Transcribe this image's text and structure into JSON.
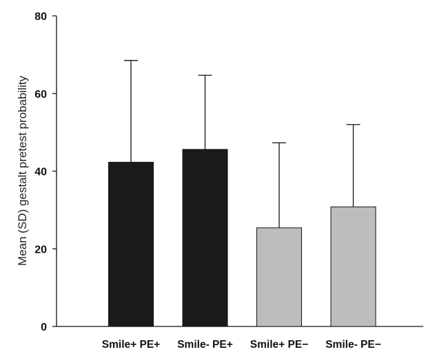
{
  "chart_data": {
    "type": "bar",
    "title": "",
    "xlabel": "",
    "ylabel": "Mean (SD) gestalt pretest probability",
    "ylim": [
      0,
      80
    ],
    "yticks": [
      0,
      20,
      40,
      60,
      80
    ],
    "grid": false,
    "categories": [
      "Smile+ PE+",
      "Smile- PE+",
      "Smile+ PE−",
      "Smile- PE−"
    ],
    "values": [
      42.3,
      45.6,
      25.4,
      30.8
    ],
    "error_sd": [
      26.2,
      19.1,
      21.9,
      21.2
    ],
    "bar_colors": [
      "#1a1a1a",
      "#1a1a1a",
      "#bdbdbd",
      "#bdbdbd"
    ]
  }
}
